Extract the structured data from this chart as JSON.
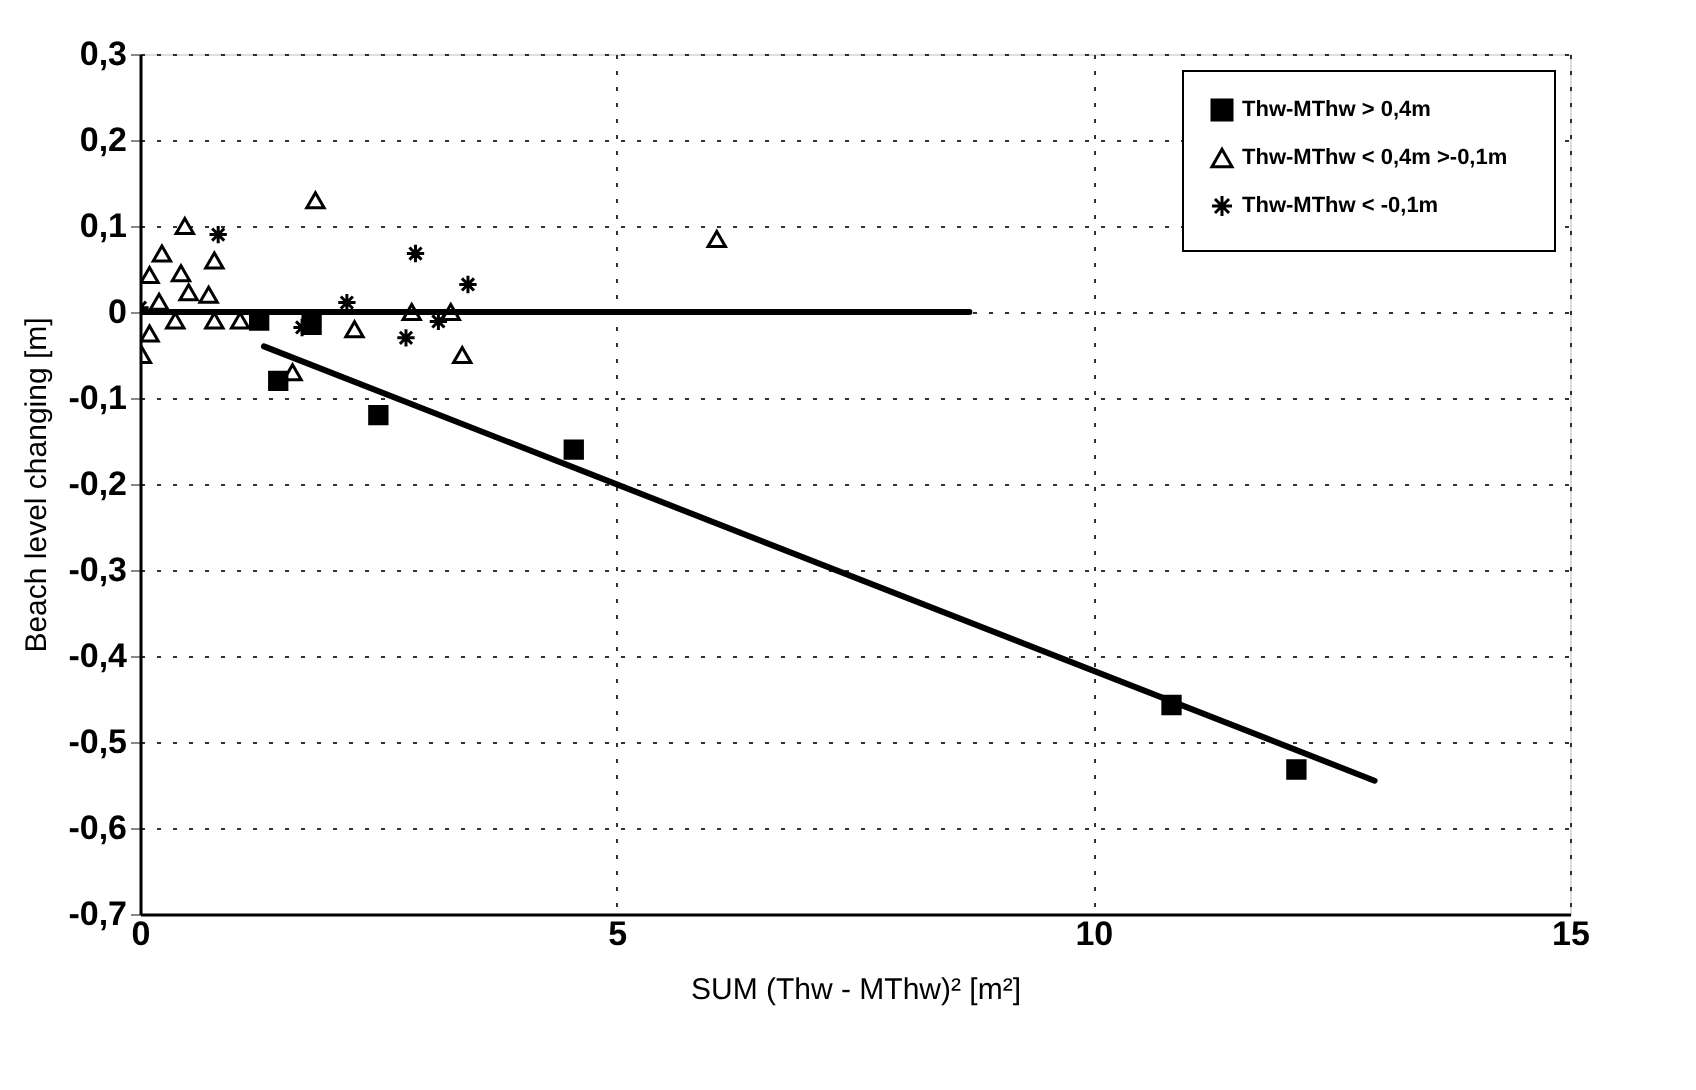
{
  "chart_data": {
    "type": "scatter",
    "xlabel": "SUM (Thw - MThw)² [m²]",
    "ylabel": "Beach level changing  [m]",
    "xlim": [
      0,
      15
    ],
    "xticks": [
      0,
      5,
      10,
      15
    ],
    "ylim": [
      -0.7,
      0.3
    ],
    "yticks": [
      {
        "value": -0.7,
        "label": "-0,7"
      },
      {
        "value": -0.6,
        "label": "-0,6"
      },
      {
        "value": -0.5,
        "label": "-0,5"
      },
      {
        "value": -0.4,
        "label": "-0,4"
      },
      {
        "value": -0.3,
        "label": "-0,3"
      },
      {
        "value": -0.2,
        "label": "-0,2"
      },
      {
        "value": -0.1,
        "label": "-0,1"
      },
      0,
      {
        "value": 0.1,
        "label": "0,1"
      },
      {
        "value": 0.2,
        "label": "0,2"
      },
      {
        "value": 0.3,
        "label": "0,3"
      }
    ],
    "grid": true,
    "legend": "top right",
    "series": [
      {
        "name": "Thw-MThw  >  0,4m",
        "color": "#000000",
        "marker": "square",
        "x": [
          1.25,
          1.8,
          1.45,
          2.5,
          4.55,
          10.82,
          12.13
        ],
        "values": [
          -0.01,
          -0.015,
          -0.08,
          -0.12,
          -0.16,
          -0.457,
          -0.532
        ]
      },
      {
        "name": "Thw-MThw  <  0,4m  >-0,1m",
        "color": "#000000",
        "marker": "triangle",
        "x": [
          1.84,
          0.47,
          0.23,
          0.78,
          0.43,
          0.1,
          0.51,
          0.72,
          0.2,
          0.37,
          0.78,
          1.05,
          0.1,
          0.02,
          2.25,
          2.85,
          3.26,
          3.38,
          1.6,
          6.05
        ],
        "values": [
          0.13,
          0.1,
          0.068,
          0.06,
          0.045,
          0.043,
          0.023,
          0.02,
          0.012,
          -0.01,
          -0.01,
          -0.01,
          -0.025,
          -0.05,
          -0.02,
          0.0,
          0.0,
          -0.05,
          -0.07,
          0.085
        ]
      },
      {
        "name": "Thw-MThw  <  -0,1m",
        "color": "#000000",
        "marker": "cross",
        "x": [
          0.82,
          2.89,
          3.44,
          2.17,
          0.0,
          3.13,
          2.79,
          1.7
        ],
        "values": [
          0.09,
          0.068,
          0.032,
          0.011,
          0.005,
          -0.011,
          -0.03,
          -0.018
        ]
      },
      {
        "type": "line",
        "color": "#000000",
        "x": [
          0,
          8.7
        ],
        "values": [
          0,
          0
        ]
      },
      {
        "type": "line",
        "color": "#000000",
        "x": [
          1.3,
          12.95
        ],
        "values": [
          -0.04,
          -0.545
        ]
      }
    ]
  }
}
